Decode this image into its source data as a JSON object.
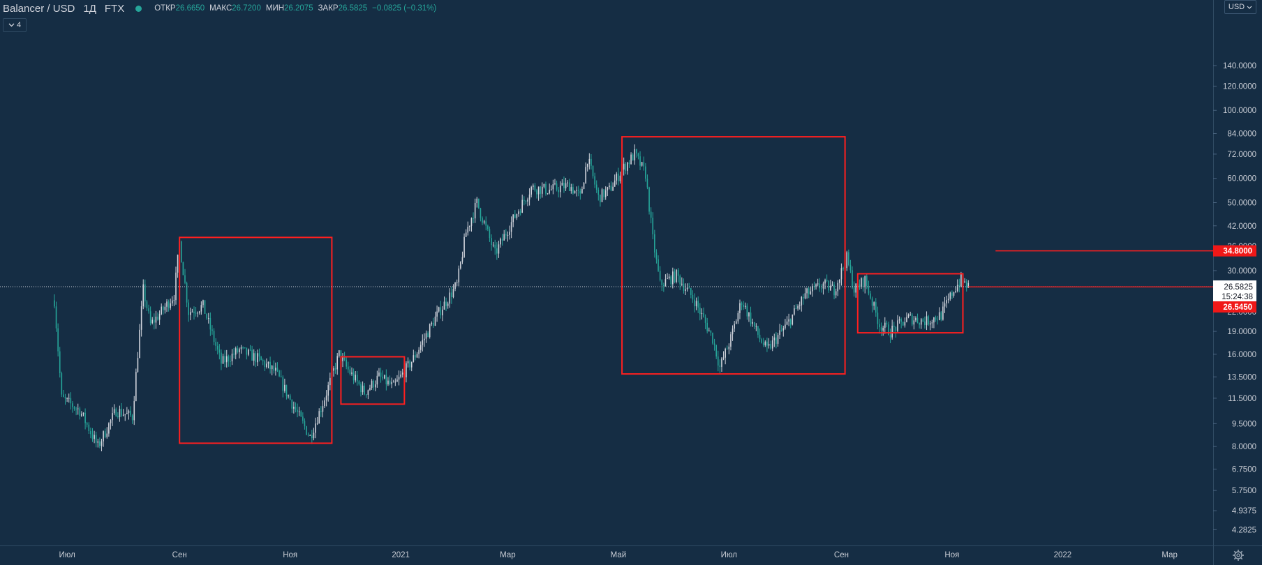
{
  "legend": {
    "symbol": "Balancer / USD",
    "interval": "1Д",
    "exchange": "FTX",
    "open_label": "ОТКР",
    "open": "26.6650",
    "high_label": "МАКС",
    "high": "26.7200",
    "low_label": "МИН",
    "low": "26.2075",
    "close_label": "ЗАКР",
    "close": "26.5825",
    "change": "−0.0825 (−0.31%)",
    "status_color": "#26a69a"
  },
  "indicator_count": "4",
  "currency_button": "USD",
  "icons": {
    "collapse": "chevron-down-icon",
    "settings": "gear-icon"
  },
  "colors": {
    "background": "#152d44",
    "up": "#d1d4dc",
    "down": "#26a69a",
    "annotation": "#ff1f1f"
  },
  "chart_data": {
    "type": "candlestick",
    "title": "Balancer / USD",
    "y_scale": "log",
    "y_ticks": [
      140,
      120,
      100,
      84,
      72,
      60,
      50,
      42,
      36,
      30,
      26,
      22,
      19,
      16,
      13.5,
      11.5,
      9.5,
      8,
      6.75,
      5.75,
      4.9375,
      4.2825
    ],
    "y_tick_labels": [
      "140.0000",
      "120.0000",
      "100.0000",
      "84.0000",
      "72.0000",
      "60.0000",
      "50.0000",
      "42.0000",
      "36.0000",
      "30.0000",
      "26.0000",
      "22.0000",
      "19.0000",
      "16.0000",
      "13.5000",
      "11.5000",
      "9.5000",
      "8.0000",
      "6.7500",
      "5.7500",
      "4.9375",
      "4.2825"
    ],
    "x_range": [
      "2020-05-25",
      "2022-03-25"
    ],
    "x_ticks": [
      {
        "date": "2020-07-01",
        "label": "Июл"
      },
      {
        "date": "2020-09-01",
        "label": "Сен"
      },
      {
        "date": "2020-11-01",
        "label": "Ноя"
      },
      {
        "date": "2021-01-01",
        "label": "2021"
      },
      {
        "date": "2021-03-01",
        "label": "Мар"
      },
      {
        "date": "2021-05-01",
        "label": "Май"
      },
      {
        "date": "2021-07-01",
        "label": "Июл"
      },
      {
        "date": "2021-09-01",
        "label": "Сен"
      },
      {
        "date": "2021-11-01",
        "label": "Ноя"
      },
      {
        "date": "2022-01-01",
        "label": "2022"
      },
      {
        "date": "2022-03-01",
        "label": "Мар"
      }
    ],
    "close_path": [
      {
        "date": "2020-06-24",
        "close": 24.0
      },
      {
        "date": "2020-06-28",
        "close": 11.5
      },
      {
        "date": "2020-07-08",
        "close": 10.5
      },
      {
        "date": "2020-07-18",
        "close": 8.0
      },
      {
        "date": "2020-07-28",
        "close": 10.5
      },
      {
        "date": "2020-08-06",
        "close": 10.0
      },
      {
        "date": "2020-08-12",
        "close": 26.0
      },
      {
        "date": "2020-08-16",
        "close": 20.0
      },
      {
        "date": "2020-08-22",
        "close": 22.0
      },
      {
        "date": "2020-08-29",
        "close": 25.0
      },
      {
        "date": "2020-09-01",
        "close": 37.0
      },
      {
        "date": "2020-09-06",
        "close": 22.0
      },
      {
        "date": "2020-09-14",
        "close": 23.0
      },
      {
        "date": "2020-09-24",
        "close": 15.0
      },
      {
        "date": "2020-10-04",
        "close": 16.5
      },
      {
        "date": "2020-10-14",
        "close": 15.5
      },
      {
        "date": "2020-10-24",
        "close": 14.0
      },
      {
        "date": "2020-11-06",
        "close": 10.0
      },
      {
        "date": "2020-11-12",
        "close": 8.6
      },
      {
        "date": "2020-11-20",
        "close": 11.5
      },
      {
        "date": "2020-11-28",
        "close": 16.0
      },
      {
        "date": "2020-12-02",
        "close": 14.5
      },
      {
        "date": "2020-12-12",
        "close": 12.0
      },
      {
        "date": "2020-12-20",
        "close": 13.5
      },
      {
        "date": "2020-12-28",
        "close": 12.5
      },
      {
        "date": "2021-01-08",
        "close": 15.5
      },
      {
        "date": "2021-01-20",
        "close": 21.0
      },
      {
        "date": "2021-02-01",
        "close": 27.0
      },
      {
        "date": "2021-02-06",
        "close": 40.0
      },
      {
        "date": "2021-02-12",
        "close": 50.0
      },
      {
        "date": "2021-02-22",
        "close": 34.0
      },
      {
        "date": "2021-03-02",
        "close": 42.0
      },
      {
        "date": "2021-03-14",
        "close": 56.0
      },
      {
        "date": "2021-03-24",
        "close": 55.0
      },
      {
        "date": "2021-04-04",
        "close": 57.0
      },
      {
        "date": "2021-04-10",
        "close": 52.0
      },
      {
        "date": "2021-04-14",
        "close": 70.0
      },
      {
        "date": "2021-04-20",
        "close": 52.0
      },
      {
        "date": "2021-04-26",
        "close": 55.0
      },
      {
        "date": "2021-05-03",
        "close": 64.0
      },
      {
        "date": "2021-05-10",
        "close": 72.0
      },
      {
        "date": "2021-05-16",
        "close": 62.0
      },
      {
        "date": "2021-05-20",
        "close": 38.0
      },
      {
        "date": "2021-05-24",
        "close": 27.0
      },
      {
        "date": "2021-06-02",
        "close": 29.0
      },
      {
        "date": "2021-06-12",
        "close": 24.0
      },
      {
        "date": "2021-06-22",
        "close": 18.0
      },
      {
        "date": "2021-06-26",
        "close": 14.5
      },
      {
        "date": "2021-07-02",
        "close": 18.0
      },
      {
        "date": "2021-07-08",
        "close": 24.0
      },
      {
        "date": "2021-07-18",
        "close": 18.0
      },
      {
        "date": "2021-07-22",
        "close": 16.5
      },
      {
        "date": "2021-08-02",
        "close": 20.0
      },
      {
        "date": "2021-08-12",
        "close": 25.0
      },
      {
        "date": "2021-08-22",
        "close": 27.0
      },
      {
        "date": "2021-08-28",
        "close": 26.0
      },
      {
        "date": "2021-09-04",
        "close": 33.0
      },
      {
        "date": "2021-09-08",
        "close": 26.0
      },
      {
        "date": "2021-09-14",
        "close": 28.0
      },
      {
        "date": "2021-09-22",
        "close": 20.0
      },
      {
        "date": "2021-09-28",
        "close": 19.0
      },
      {
        "date": "2021-10-08",
        "close": 21.0
      },
      {
        "date": "2021-10-18",
        "close": 20.5
      },
      {
        "date": "2021-10-26",
        "close": 21.5
      },
      {
        "date": "2021-11-02",
        "close": 26.0
      },
      {
        "date": "2021-11-06",
        "close": 28.0
      },
      {
        "date": "2021-11-10",
        "close": 26.58
      }
    ],
    "last_price": {
      "value": 26.5825,
      "label": "26.5825",
      "countdown": "15:24:38"
    },
    "horizontal_lines": [
      {
        "value": 34.8,
        "label": "34.8000",
        "from_date": "2021-11-25"
      },
      {
        "value": 26.545,
        "label": "26.5450",
        "from_date": "2021-11-10"
      }
    ],
    "annotation_boxes": [
      {
        "from": "2020-09-01",
        "to": "2020-11-24",
        "top": 38.5,
        "bottom": 8.2
      },
      {
        "from": "2020-11-29",
        "to": "2021-01-03",
        "top": 15.7,
        "bottom": 11.0
      },
      {
        "from": "2021-05-03",
        "to": "2021-09-03",
        "top": 82.0,
        "bottom": 13.8
      },
      {
        "from": "2021-09-10",
        "to": "2021-11-07",
        "top": 29.3,
        "bottom": 18.8
      }
    ]
  }
}
